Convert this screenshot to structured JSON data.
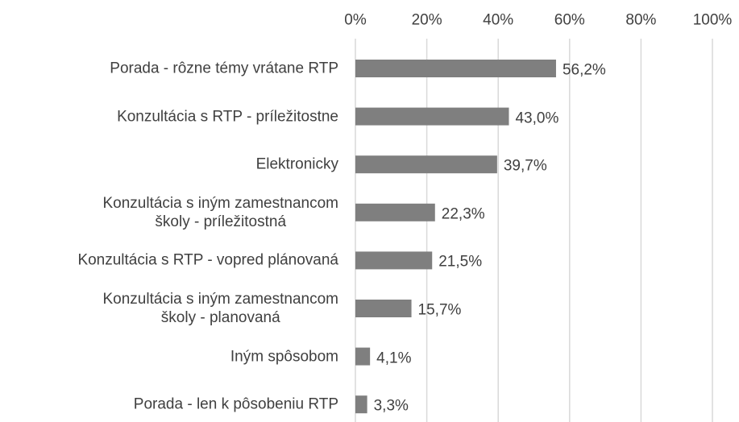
{
  "chart_data": {
    "type": "bar",
    "orientation": "horizontal",
    "categories": [
      "Porada - rôzne témy vrátane RTP",
      "Konzultácia s RTP - príležitostne",
      "Elektronicky",
      "Konzultácia s iným zamestnancom\nškoly - príležitostná",
      "Konzultácia s RTP - vopred plánovaná",
      "Konzultácia s iným zamestnancom\nškoly - planovaná",
      "Iným spôsobom",
      "Porada - len k pôsobeniu RTP"
    ],
    "values": [
      56.2,
      43.0,
      39.7,
      22.3,
      21.5,
      15.7,
      4.1,
      3.3
    ],
    "value_labels": [
      "56,2%",
      "43,0%",
      "39,7%",
      "22,3%",
      "21,5%",
      "15,7%",
      "4,1%",
      "3,3%"
    ],
    "color": "#7f7f7f",
    "xlim": [
      0,
      100
    ],
    "xticks": [
      {
        "value": 0,
        "label": "0%"
      },
      {
        "value": 20,
        "label": "20%"
      },
      {
        "value": 40,
        "label": "40%"
      },
      {
        "value": 60,
        "label": "60%"
      },
      {
        "value": 80,
        "label": "80%"
      },
      {
        "value": 100,
        "label": "100%"
      }
    ],
    "grid": true
  }
}
